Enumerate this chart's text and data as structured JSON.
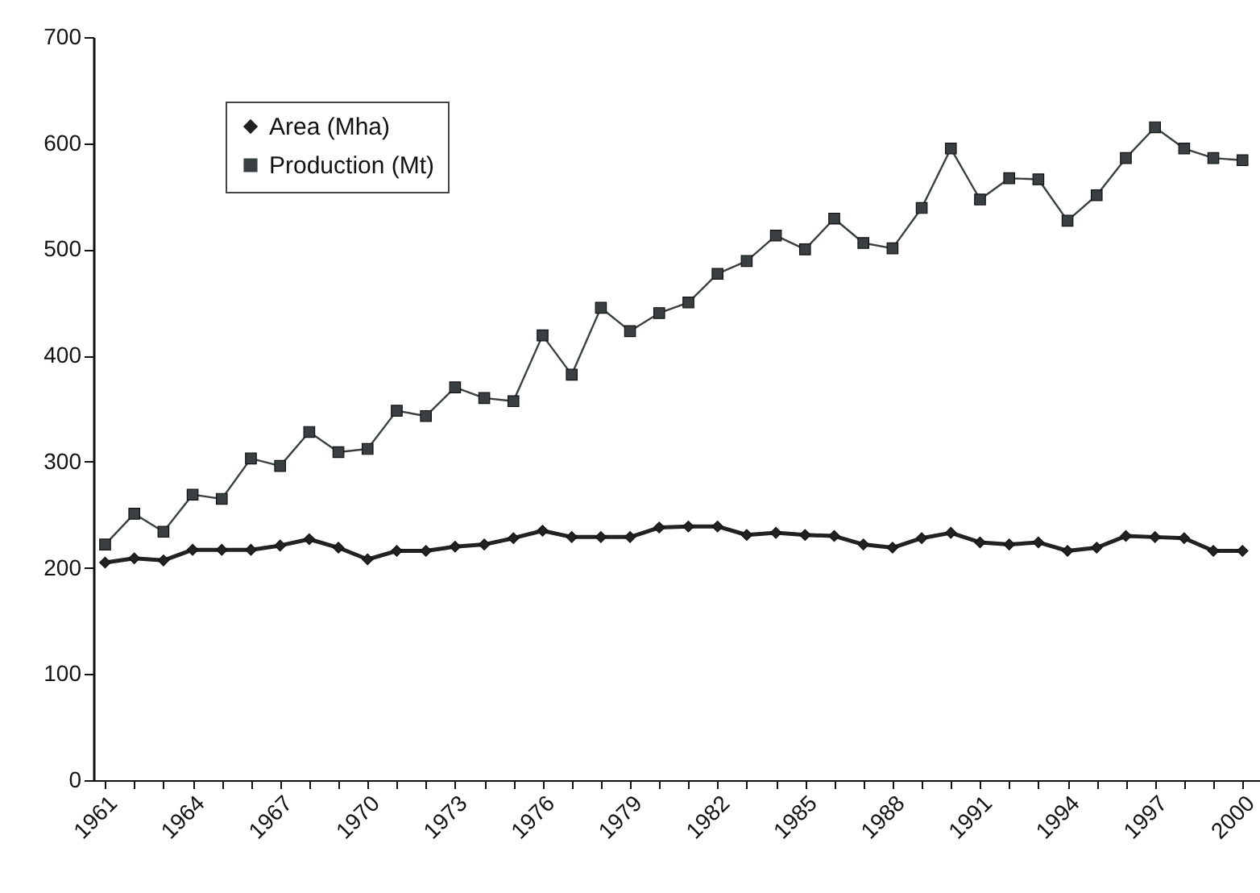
{
  "chart_data": {
    "type": "line",
    "x": [
      1961,
      1962,
      1963,
      1964,
      1965,
      1966,
      1967,
      1968,
      1969,
      1970,
      1971,
      1972,
      1973,
      1974,
      1975,
      1976,
      1977,
      1978,
      1979,
      1980,
      1981,
      1982,
      1983,
      1984,
      1985,
      1986,
      1987,
      1988,
      1989,
      1990,
      1991,
      1992,
      1993,
      1994,
      1995,
      1996,
      1997,
      1998,
      1999,
      2000
    ],
    "series": [
      {
        "name": "Area (Mha)",
        "color": "#222222",
        "marker": "diamond",
        "values": [
          205,
          209,
          207,
          217,
          217,
          217,
          221,
          227,
          219,
          208,
          216,
          216,
          220,
          222,
          228,
          235,
          229,
          229,
          229,
          238,
          239,
          239,
          231,
          233,
          231,
          230,
          222,
          219,
          228,
          233,
          224,
          222,
          224,
          216,
          219,
          230,
          229,
          228,
          216,
          216
        ]
      },
      {
        "name": "Production (Mt)",
        "color": "#3a3f42",
        "marker": "square",
        "values": [
          222,
          251,
          234,
          269,
          265,
          303,
          296,
          328,
          309,
          312,
          348,
          343,
          370,
          360,
          357,
          419,
          382,
          445,
          423,
          440,
          450,
          477,
          489,
          513,
          500,
          529,
          506,
          501,
          539,
          595,
          547,
          567,
          566,
          527,
          551,
          586,
          615,
          595,
          586,
          584
        ]
      }
    ],
    "xlim": [
      1960.6,
      2000.6
    ],
    "xticks": [
      1961,
      {
        "value": 1962,
        "label": null
      },
      {
        "value": 1963,
        "label": null
      },
      1964,
      {
        "value": 1965,
        "label": null
      },
      {
        "value": 1966,
        "label": null
      },
      1967,
      {
        "value": 1968,
        "label": null
      },
      {
        "value": 1969,
        "label": null
      },
      1970,
      {
        "value": 1971,
        "label": null
      },
      {
        "value": 1972,
        "label": null
      },
      1973,
      {
        "value": 1974,
        "label": null
      },
      {
        "value": 1975,
        "label": null
      },
      1976,
      {
        "value": 1977,
        "label": null
      },
      {
        "value": 1978,
        "label": null
      },
      1979,
      {
        "value": 1980,
        "label": null
      },
      {
        "value": 1981,
        "label": null
      },
      1982,
      {
        "value": 1983,
        "label": null
      },
      {
        "value": 1984,
        "label": null
      },
      1985,
      {
        "value": 1986,
        "label": null
      },
      {
        "value": 1987,
        "label": null
      },
      1988,
      {
        "value": 1989,
        "label": null
      },
      {
        "value": 1990,
        "label": null
      },
      1991,
      {
        "value": 1992,
        "label": null
      },
      {
        "value": 1993,
        "label": null
      },
      1994,
      {
        "value": 1995,
        "label": null
      },
      {
        "value": 1996,
        "label": null
      },
      1997,
      {
        "value": 1998,
        "label": null
      },
      {
        "value": 1999,
        "label": null
      },
      2000
    ],
    "ylim": [
      0,
      700
    ],
    "yticks": [
      0,
      100,
      200,
      300,
      400,
      500,
      600,
      700
    ],
    "legend": "top left",
    "grid": false,
    "line_style": "solid"
  }
}
